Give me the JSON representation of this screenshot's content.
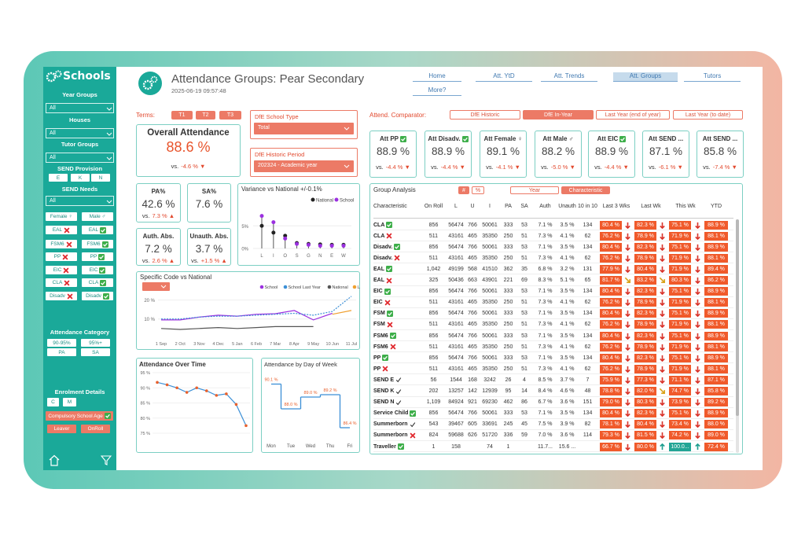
{
  "sidebar": {
    "logo": "Schools",
    "dropdowns": [
      {
        "label": "Year Groups",
        "value": "All"
      },
      {
        "label": "Houses",
        "value": "All"
      },
      {
        "label": "Tutor Groups",
        "value": "All"
      }
    ],
    "send_provision": {
      "label": "SEND Provision",
      "options": [
        "E",
        "K",
        "N"
      ]
    },
    "send_needs": {
      "label": "SEND Needs",
      "value": "All"
    },
    "toggles": [
      [
        {
          "text": "Female ♀"
        },
        {
          "text": "Male ♂"
        }
      ],
      [
        {
          "text": "EAL",
          "icon": "no"
        },
        {
          "text": "EAL",
          "icon": "yes"
        }
      ],
      [
        {
          "text": "FSM6",
          "icon": "no"
        },
        {
          "text": "FSM6",
          "icon": "yes"
        }
      ],
      [
        {
          "text": "PP",
          "icon": "no"
        },
        {
          "text": "PP",
          "icon": "yes"
        }
      ],
      [
        {
          "text": "EIC",
          "icon": "no"
        },
        {
          "text": "EIC",
          "icon": "yes"
        }
      ],
      [
        {
          "text": "CLA",
          "icon": "no"
        },
        {
          "text": "CLA",
          "icon": "yes"
        }
      ],
      [
        {
          "text": "Disadv",
          "icon": "no"
        },
        {
          "text": "Disadv",
          "icon": "yes"
        }
      ]
    ],
    "attendance_category": {
      "label": "Attendance Category",
      "options": [
        "90-95%",
        "95%+",
        "PA",
        "SA"
      ]
    },
    "enrolment": {
      "label": "Enrolment Details",
      "options": [
        "C",
        "M"
      ],
      "compulsory": {
        "text": "Compulsory School Age",
        "icon": "yes"
      },
      "status": [
        "Leaver",
        "OnRoll"
      ]
    }
  },
  "header": {
    "title": "Attendance Groups: Pear Secondary",
    "timestamp": "2025-06-19 09:57:48",
    "nav": [
      "Home",
      "Att. YtD",
      "Att. Trends",
      "Att. Groups",
      "Tutors",
      "More?"
    ],
    "nav_active": 3
  },
  "terms": {
    "label": "Terms:",
    "options": [
      "T1",
      "T2",
      "T3"
    ]
  },
  "school_type": {
    "label": "DfE School Type",
    "value": "Total"
  },
  "historic_period": {
    "label": "DfE Historic Period",
    "value": "202324 - Academic year"
  },
  "comparator": {
    "label": "Attend. Comparator:",
    "options": [
      "DfE Historic",
      "DfE In-Year",
      "Last Year (end of year)",
      "Last Year (to date)"
    ],
    "active": 1
  },
  "overall": {
    "title": "Overall Attendance",
    "value": "88.6 %",
    "vs": "vs.",
    "delta": "-4.6 % ▼"
  },
  "cards": [
    {
      "title": "PA%",
      "value": "42.6 %",
      "vs": "vs.",
      "delta": "7.3 % ▲"
    },
    {
      "title": "SA%",
      "value": "7.6 %"
    },
    {
      "title": "Auth. Abs.",
      "value": "7.2 %",
      "vs": "vs.",
      "delta": "2.6 % ▲"
    },
    {
      "title": "Unauth. Abs.",
      "value": "3.7 %",
      "vs": "vs.",
      "delta": "+1.5 % ▲"
    }
  ],
  "group_kpis": [
    {
      "title": "Att PP",
      "icon": "yes",
      "value": "88.9 %",
      "vs": "vs.",
      "delta": "-4.4 % ▼"
    },
    {
      "title": "Att Disadv.",
      "icon": "yes",
      "value": "88.9 %",
      "vs": "vs.",
      "delta": "-4.4 % ▼"
    },
    {
      "title": "Att Female ♀",
      "value": "89.1 %",
      "vs": "vs.",
      "delta": "-4.1 % ▼"
    },
    {
      "title": "Att Male ♂",
      "value": "88.2 %",
      "vs": "vs.",
      "delta": "-5.0 % ▼"
    },
    {
      "title": "Att EIC",
      "icon": "yes",
      "value": "88.9 %",
      "vs": "vs.",
      "delta": "-4.4 % ▼"
    },
    {
      "title": "Att SEND ...",
      "value": "87.1 %",
      "vs": "vs.",
      "delta": "-6.1 % ▼"
    },
    {
      "title": "Att SEND ...",
      "value": "85.8 %",
      "vs": "vs.",
      "delta": "-7.4 % ▼"
    }
  ],
  "variance_chart": {
    "type": "lollipop",
    "title": "Variance vs National +/-0.1%",
    "categories": [
      "L",
      "I",
      "O",
      "S",
      "G",
      "N",
      "E",
      "W"
    ],
    "series": [
      {
        "name": "National",
        "color": "#222222",
        "values": [
          5.0,
          3.5,
          2.8,
          1.2,
          1.0,
          0.9,
          0.8,
          0.8
        ]
      },
      {
        "name": "School",
        "color": "#9b30e0",
        "values": [
          7.2,
          5.8,
          2.2,
          1.0,
          0.8,
          0.6,
          0.6,
          0.6
        ]
      }
    ],
    "ylim": [
      0,
      8
    ],
    "yticks": [
      {
        "value": 0,
        "label": "0%"
      },
      {
        "value": 5,
        "label": "5%"
      }
    ]
  },
  "code_chart": {
    "type": "line",
    "title": "Specific Code vs National",
    "categories": [
      "1 Sep",
      "2 Oct",
      "3 Nov",
      "4 Dec",
      "5 Jan",
      "6 Feb",
      "7 Mar",
      "8 Apr",
      "9 May",
      "10 Jun",
      "11 Jul"
    ],
    "series": [
      {
        "name": "School",
        "color": "#9b30e0",
        "dash": false,
        "values": [
          9.5,
          9.5,
          11,
          12,
          11.5,
          12.5,
          12.8,
          14.5,
          9.5,
          13,
          null
        ]
      },
      {
        "name": "School Last Year",
        "color": "#3b8fd6",
        "dash": true,
        "values": [
          10,
          10,
          11,
          11.5,
          11.5,
          12,
          12.5,
          13,
          12,
          14,
          22
        ]
      },
      {
        "name": "National",
        "color": "#555555",
        "dash": false,
        "values": [
          5,
          4.5,
          5,
          5.5,
          5,
          5.5,
          6,
          6,
          6,
          null,
          null
        ]
      },
      {
        "name": "LA",
        "color": "#f0a030",
        "dash": false,
        "values": [
          null,
          null,
          null,
          null,
          null,
          null,
          null,
          null,
          null,
          12.5,
          14.5
        ]
      }
    ],
    "ylim": [
      2,
      24
    ],
    "yticks": [
      {
        "value": 10,
        "label": "10 %"
      },
      {
        "value": 20,
        "label": "20 %"
      }
    ]
  },
  "time_chart": {
    "type": "line",
    "title": "Attendance Over Time",
    "categories": [
      null,
      null,
      null,
      null,
      null,
      null,
      null,
      null,
      null,
      null
    ],
    "series": [
      {
        "color": "#3b8fd6",
        "marker_color": "#e8602c",
        "values": [
          91.8,
          91.0,
          90.0,
          88.5,
          90.0,
          89.0,
          87.5,
          88.0,
          84.5,
          77.5
        ]
      }
    ],
    "ylim": [
      75,
      95
    ],
    "yticks": [
      {
        "value": 75,
        "label": "75 %"
      },
      {
        "value": 80,
        "label": "80 %"
      },
      {
        "value": 85,
        "label": "85 %"
      },
      {
        "value": 90,
        "label": "90 %"
      },
      {
        "value": 95,
        "label": "95 %"
      }
    ]
  },
  "day_chart": {
    "type": "step",
    "title": "Attendance by Day of Week",
    "categories": [
      "Mon",
      "Tue",
      "Wed",
      "Thu",
      "Fri"
    ],
    "values": [
      90.1,
      88.0,
      89.0,
      89.2,
      86.4
    ],
    "value_labels": [
      "90.1 %",
      "88.0 %",
      "89.0 %",
      "89.2 %",
      "86.4 %"
    ],
    "color": "#3b8fd6",
    "label_color": "#e8602c",
    "ylim": [
      86,
      90.8
    ]
  },
  "group_analysis": {
    "title": "Group Analysis",
    "modes": [
      "#",
      "%"
    ],
    "mode_active": 0,
    "views": [
      "Year",
      "Characteristic"
    ],
    "view_active": 1,
    "columns": [
      "Characteristic",
      "On Roll",
      "L",
      "U",
      "I",
      "PA",
      "SA",
      "Auth",
      "Unauth",
      "10 in 10",
      "Last 3 Wks",
      "Last Wk",
      "This Wk",
      "YTD"
    ],
    "rows": [
      {
        "label": "CLA",
        "icon": "yes",
        "cells": [
          "856",
          "56474",
          "766",
          "50061",
          "333",
          "53",
          "7.1 %",
          "3.5 %",
          "134",
          "80.4 %",
          "82.3 %",
          "75.1 %",
          "88.9 %"
        ],
        "trends": [
          "down",
          "down",
          "down"
        ]
      },
      {
        "label": "CLA",
        "icon": "no",
        "cells": [
          "511",
          "43161",
          "465",
          "35350",
          "250",
          "51",
          "7.3 %",
          "4.1 %",
          "62",
          "76.2 %",
          "78.9 %",
          "71.9 %",
          "88.1 %"
        ],
        "trends": [
          "down",
          "down",
          "down"
        ]
      },
      {
        "label": "Disadv.",
        "icon": "yes",
        "cells": [
          "856",
          "56474",
          "766",
          "50061",
          "333",
          "53",
          "7.1 %",
          "3.5 %",
          "134",
          "80.4 %",
          "82.3 %",
          "75.1 %",
          "88.9 %"
        ],
        "trends": [
          "down",
          "down",
          "down"
        ]
      },
      {
        "label": "Disadv.",
        "icon": "no",
        "cells": [
          "511",
          "43161",
          "465",
          "35350",
          "250",
          "51",
          "7.3 %",
          "4.1 %",
          "62",
          "76.2 %",
          "78.9 %",
          "71.9 %",
          "88.1 %"
        ],
        "trends": [
          "down",
          "down",
          "down"
        ]
      },
      {
        "label": "EAL",
        "icon": "yes",
        "cells": [
          "1,042",
          "49199",
          "568",
          "41510",
          "362",
          "35",
          "6.8 %",
          "3.2 %",
          "131",
          "77.9 %",
          "80.4 %",
          "71.9 %",
          "89.4 %"
        ],
        "trends": [
          "down",
          "down",
          "down"
        ]
      },
      {
        "label": "EAL",
        "icon": "no",
        "cells": [
          "325",
          "50436",
          "663",
          "43901",
          "221",
          "69",
          "8.3 %",
          "5.1 %",
          "65",
          "81.7 %",
          "83.2 %",
          "80.3 %",
          "86.2 %"
        ],
        "trends": [
          "diag",
          "diag",
          "down"
        ]
      },
      {
        "label": "EIC",
        "icon": "yes",
        "cells": [
          "856",
          "56474",
          "766",
          "50061",
          "333",
          "53",
          "7.1 %",
          "3.5 %",
          "134",
          "80.4 %",
          "82.3 %",
          "75.1 %",
          "88.9 %"
        ],
        "trends": [
          "down",
          "down",
          "down"
        ]
      },
      {
        "label": "EIC",
        "icon": "no",
        "cells": [
          "511",
          "43161",
          "465",
          "35350",
          "250",
          "51",
          "7.3 %",
          "4.1 %",
          "62",
          "76.2 %",
          "78.9 %",
          "71.9 %",
          "88.1 %"
        ],
        "trends": [
          "down",
          "down",
          "down"
        ]
      },
      {
        "label": "FSM",
        "icon": "yes",
        "cells": [
          "856",
          "56474",
          "766",
          "50061",
          "333",
          "53",
          "7.1 %",
          "3.5 %",
          "134",
          "80.4 %",
          "82.3 %",
          "75.1 %",
          "88.9 %"
        ],
        "trends": [
          "down",
          "down",
          "down"
        ]
      },
      {
        "label": "FSM",
        "icon": "no",
        "cells": [
          "511",
          "43161",
          "465",
          "35350",
          "250",
          "51",
          "7.3 %",
          "4.1 %",
          "62",
          "76.2 %",
          "78.9 %",
          "71.9 %",
          "88.1 %"
        ],
        "trends": [
          "down",
          "down",
          "down"
        ]
      },
      {
        "label": "FSM6",
        "icon": "yes",
        "cells": [
          "856",
          "56474",
          "766",
          "50061",
          "333",
          "53",
          "7.1 %",
          "3.5 %",
          "134",
          "80.4 %",
          "82.3 %",
          "75.1 %",
          "88.9 %"
        ],
        "trends": [
          "down",
          "down",
          "down"
        ]
      },
      {
        "label": "FSM6",
        "icon": "no",
        "cells": [
          "511",
          "43161",
          "465",
          "35350",
          "250",
          "51",
          "7.3 %",
          "4.1 %",
          "62",
          "76.2 %",
          "78.9 %",
          "71.9 %",
          "88.1 %"
        ],
        "trends": [
          "down",
          "down",
          "down"
        ]
      },
      {
        "label": "PP",
        "icon": "yes",
        "cells": [
          "856",
          "56474",
          "766",
          "50061",
          "333",
          "53",
          "7.1 %",
          "3.5 %",
          "134",
          "80.4 %",
          "82.3 %",
          "75.1 %",
          "88.9 %"
        ],
        "trends": [
          "down",
          "down",
          "down"
        ]
      },
      {
        "label": "PP",
        "icon": "no",
        "cells": [
          "511",
          "43161",
          "465",
          "35350",
          "250",
          "51",
          "7.3 %",
          "4.1 %",
          "62",
          "76.2 %",
          "78.9 %",
          "71.9 %",
          "88.1 %"
        ],
        "trends": [
          "down",
          "down",
          "down"
        ]
      },
      {
        "label": "SEND E",
        "icon": "tick",
        "cells": [
          "56",
          "1544",
          "168",
          "3242",
          "26",
          "4",
          "8.5 %",
          "3.7 %",
          "7",
          "75.9 %",
          "77.3 %",
          "71.1 %",
          "87.1 %"
        ],
        "trends": [
          "down",
          "down",
          "down"
        ]
      },
      {
        "label": "SEND K",
        "icon": "tick",
        "cells": [
          "202",
          "13257",
          "142",
          "12939",
          "95",
          "14",
          "8.4 %",
          "4.6 %",
          "48",
          "78.8 %",
          "82.0 %",
          "74.7 %",
          "85.8 %"
        ],
        "trends": [
          "down",
          "diag",
          "down"
        ]
      },
      {
        "label": "SEND N",
        "icon": "tick",
        "cells": [
          "1,109",
          "84924",
          "921",
          "69230",
          "462",
          "86",
          "6.7 %",
          "3.6 %",
          "151",
          "79.0 %",
          "80.3 %",
          "73.9 %",
          "89.2 %"
        ],
        "trends": [
          "down",
          "down",
          "down"
        ]
      },
      {
        "label": "Service Child",
        "icon": "yes",
        "cells": [
          "856",
          "56474",
          "766",
          "50061",
          "333",
          "53",
          "7.1 %",
          "3.5 %",
          "134",
          "80.4 %",
          "82.3 %",
          "75.1 %",
          "88.9 %"
        ],
        "trends": [
          "down",
          "down",
          "down"
        ]
      },
      {
        "label": "Summerborn",
        "icon": "tick",
        "cells": [
          "543",
          "39467",
          "605",
          "33691",
          "245",
          "45",
          "7.5 %",
          "3.9 %",
          "82",
          "78.1 %",
          "80.4 %",
          "73.4 %",
          "88.0 %"
        ],
        "trends": [
          "down",
          "down",
          "down"
        ]
      },
      {
        "label": "Summerborn",
        "icon": "no",
        "cells": [
          "824",
          "59688",
          "626",
          "51720",
          "336",
          "59",
          "7.0 %",
          "3.6 %",
          "114",
          "79.3 %",
          "81.5 %",
          "74.2 %",
          "89.0 %"
        ],
        "trends": [
          "down",
          "down",
          "down"
        ]
      },
      {
        "label": "Traveller",
        "icon": "yes",
        "cells": [
          "1",
          "158",
          null,
          "74",
          "1",
          null,
          "11.7...",
          "15.6 ...",
          null,
          "66.7 %",
          "80.0 %",
          "100.0...",
          "72.4 %"
        ],
        "trends": [
          "down",
          "up",
          "up"
        ]
      }
    ]
  }
}
